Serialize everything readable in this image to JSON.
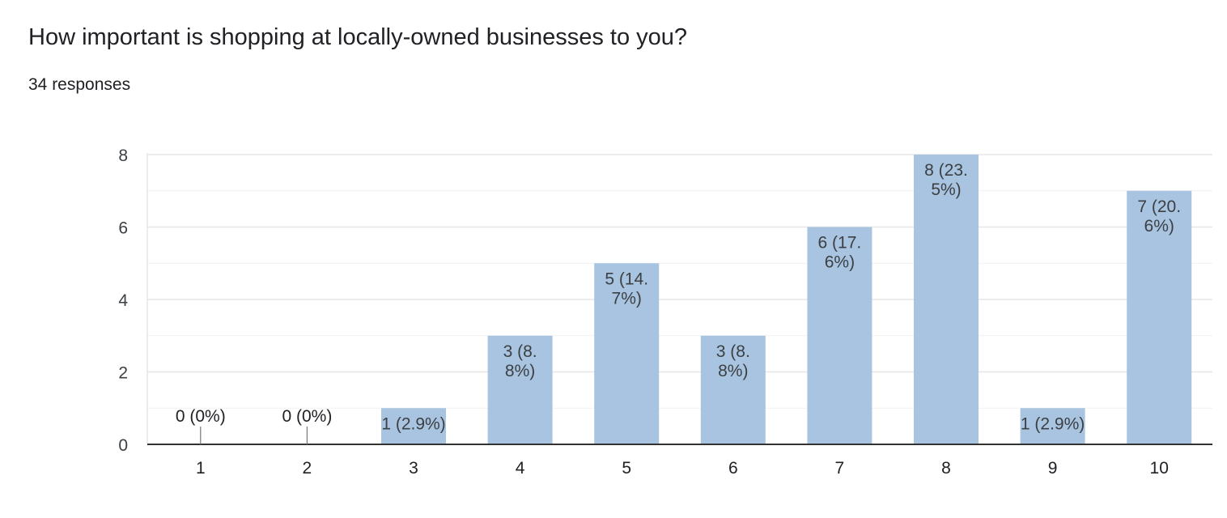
{
  "question": {
    "title": "How important is shopping at locally-owned businesses to you?",
    "responses_label": "34 responses"
  },
  "colors": {
    "bar": "#a8c4e0",
    "text": "#202124",
    "label": "#3c4043",
    "grid": "#e6e6e6",
    "minor_grid": "#f1f1f1",
    "axis": "#333333"
  },
  "chart_data": {
    "type": "bar",
    "title": "How important is shopping at locally-owned businesses to you?",
    "categories": [
      "1",
      "2",
      "3",
      "4",
      "5",
      "6",
      "7",
      "8",
      "9",
      "10"
    ],
    "values": [
      0,
      0,
      1,
      3,
      5,
      3,
      6,
      8,
      1,
      7
    ],
    "data_labels": [
      [
        "0 (0%)"
      ],
      [
        "0 (0%)"
      ],
      [
        "1 (2.9%)"
      ],
      [
        "3 (8.",
        "8%)"
      ],
      [
        "5 (14.",
        "7%)"
      ],
      [
        "3 (8.",
        "8%)"
      ],
      [
        "6 (17.",
        "6%)"
      ],
      [
        "8 (23.",
        "5%)"
      ],
      [
        "1 (2.9%)"
      ],
      [
        "7 (20.",
        "6%)"
      ]
    ],
    "xlabel": "",
    "ylabel": "",
    "ylim": [
      0,
      8
    ],
    "yticks": [
      0,
      2,
      4,
      6,
      8
    ],
    "grid": true,
    "legend": "none"
  }
}
